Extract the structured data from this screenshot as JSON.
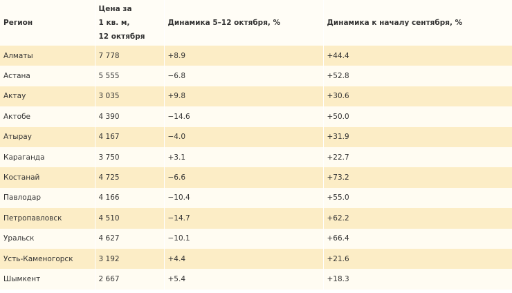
{
  "table": {
    "headers": [
      "Регион",
      "Цена за 1 кв. м, 12 октября",
      "Динамика 5–12 октября, %",
      "Динамика к началу сентября, %"
    ],
    "header_price_lines": [
      "Цена за",
      "1 кв. м,",
      "12 октября"
    ],
    "rows": [
      [
        "Алматы",
        "7 778",
        "+8.9",
        "+44.4"
      ],
      [
        "Астана",
        "5 555",
        "−6.8",
        "+52.8"
      ],
      [
        "Актау",
        "3 035",
        "+9.8",
        "+30.6"
      ],
      [
        "Актобе",
        "4 390",
        "−14.6",
        "+50.0"
      ],
      [
        "Атырау",
        "4 167",
        "−4.0",
        "+31.9"
      ],
      [
        "Караганда",
        "3 750",
        "+3.1",
        "+22.7"
      ],
      [
        "Костанай",
        "4 725",
        "−6.6",
        "+73.2"
      ],
      [
        "Павлодар",
        "4 166",
        "−10.4",
        "+55.0"
      ],
      [
        "Петропавловск",
        "4 510",
        "−14.7",
        "+62.2"
      ],
      [
        "Уральск",
        "4 627",
        "−10.1",
        "+66.4"
      ],
      [
        "Усть-Каменогорск",
        "3 192",
        "+4.4",
        "+21.6"
      ],
      [
        "Шымкент",
        "2 667",
        "+5.4",
        "+18.3"
      ]
    ],
    "colors": {
      "odd_row": "#fcedc6",
      "even_row": "#fffcf2",
      "header": "#fffdf6"
    }
  }
}
